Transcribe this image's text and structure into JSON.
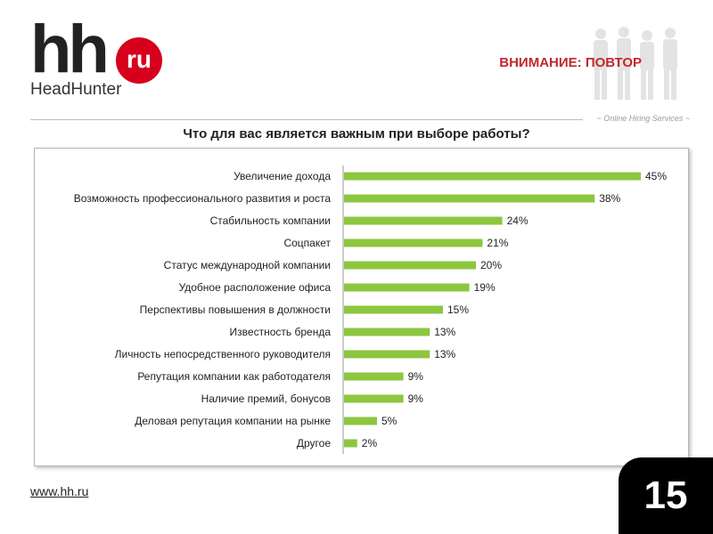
{
  "header": {
    "logo_mark": "hh",
    "logo_domain": "ru",
    "logo_name": "HeadHunter",
    "attention": "ВНИМАНИЕ: ПОВТОР",
    "services": "Online Hiring Services"
  },
  "footer": {
    "url": "www.hh.ru",
    "page_number": "15"
  },
  "colors": {
    "bar": "#8dc63f",
    "brand_red": "#d6001c",
    "accent_red": "#c0282d"
  },
  "chart_data": {
    "type": "bar",
    "orientation": "horizontal",
    "title": "Что для вас является важным при выборе работы?",
    "xlabel": "",
    "ylabel": "",
    "xlim": [
      0,
      45
    ],
    "grid": false,
    "categories": [
      "Увеличение дохода",
      "Возможность профессионального развития и роста",
      "Стабильность компании",
      "Соцпакет",
      "Статус международной компании",
      "Удобное расположение офиса",
      "Перспективы повышения в должности",
      "Известность бренда",
      "Личность непосредственного руководителя",
      "Репутация компании как работодателя",
      "Наличие премий, бонусов",
      "Деловая репутация компании на рынке",
      "Другое"
    ],
    "values": [
      45,
      38,
      24,
      21,
      20,
      19,
      15,
      13,
      13,
      9,
      9,
      5,
      2
    ],
    "value_labels": [
      "45%",
      "38%",
      "24%",
      "21%",
      "20%",
      "19%",
      "15%",
      "13%",
      "13%",
      "9%",
      "9%",
      "5%",
      "2%"
    ]
  }
}
